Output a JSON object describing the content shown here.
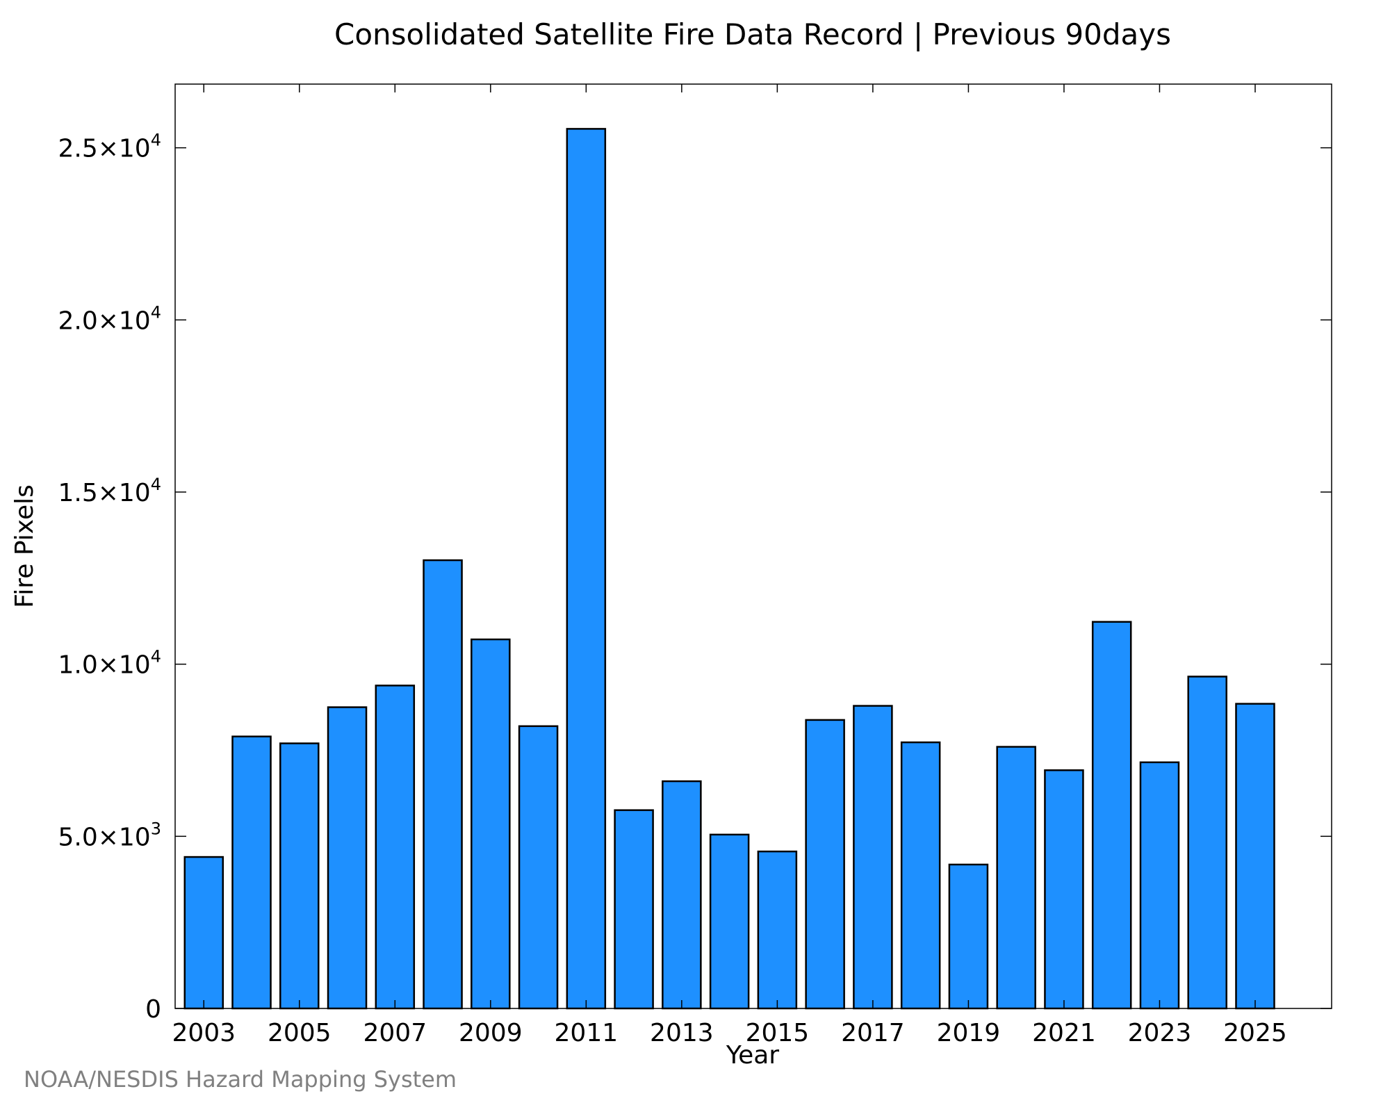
{
  "chart_data": {
    "type": "bar",
    "title": "Consolidated Satellite Fire Data Record | Previous 90days",
    "xlabel": "Year",
    "ylabel": "Fire Pixels",
    "categories": [
      "2003",
      "2004",
      "2005",
      "2006",
      "2007",
      "2008",
      "2009",
      "2010",
      "2011",
      "2012",
      "2013",
      "2014",
      "2015",
      "2016",
      "2017",
      "2018",
      "2019",
      "2020",
      "2021",
      "2022",
      "2023",
      "2024",
      "2025"
    ],
    "values": [
      4400,
      7900,
      7700,
      8750,
      9380,
      13020,
      10720,
      8200,
      25550,
      5760,
      6600,
      5050,
      4560,
      8380,
      8790,
      7730,
      4180,
      7600,
      6920,
      11230,
      7150,
      9640,
      8850
    ],
    "x_tick_labels": [
      "2003",
      "2005",
      "2007",
      "2009",
      "2011",
      "2013",
      "2015",
      "2017",
      "2019",
      "2021",
      "2023",
      "2025"
    ],
    "y_ticks": [
      {
        "value": 0,
        "mantissa": "0",
        "exp": ""
      },
      {
        "value": 5000,
        "mantissa": "5.0×10",
        "exp": "3"
      },
      {
        "value": 10000,
        "mantissa": "1.0×10",
        "exp": "4"
      },
      {
        "value": 15000,
        "mantissa": "1.5×10",
        "exp": "4"
      },
      {
        "value": 20000,
        "mantissa": "2.0×10",
        "exp": "4"
      },
      {
        "value": 25000,
        "mantissa": "2.5×10",
        "exp": "4"
      }
    ],
    "ylim": [
      0,
      26850
    ],
    "xlim": [
      2002.4,
      2026.6
    ],
    "grid": false,
    "bar_color": "#1e90ff",
    "bar_edge_color": "#000000"
  },
  "credit": "NOAA/NESDIS Hazard Mapping System"
}
